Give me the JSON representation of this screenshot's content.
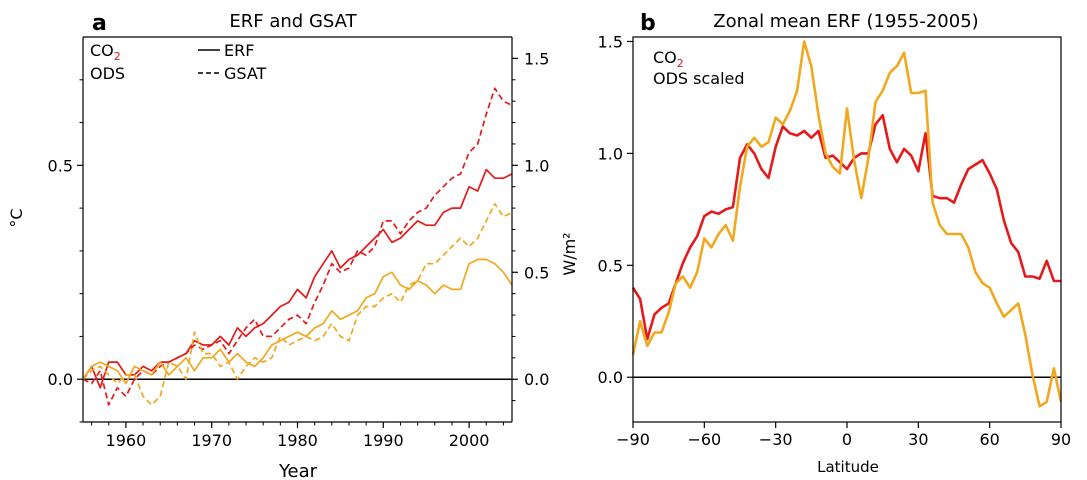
{
  "colors": {
    "co2": "#e41a1c",
    "ods": "#f0a81e",
    "axis": "#000000"
  },
  "chart_data": [
    {
      "panel_letter": "a",
      "type": "line",
      "title": "ERF and GSAT",
      "xlabel": "Year",
      "ylabel_left": "°C",
      "ylabel_right": "W/m²",
      "xlim": [
        1955,
        2005
      ],
      "ylim_left": [
        -0.1,
        0.8
      ],
      "ylim_right": [
        -0.2,
        1.6
      ],
      "xticks": [
        1960,
        1970,
        1980,
        1990,
        2000
      ],
      "xtick_labels": [
        "1960",
        "1970",
        "1980",
        "1990",
        "2000"
      ],
      "yticks_left": [
        0.0,
        0.5
      ],
      "ytick_labels_left": [
        "0.0",
        "0.5"
      ],
      "yticks_right": [
        0.0,
        0.5,
        1.0,
        1.5
      ],
      "ytick_labels_right": [
        "0.0",
        "0.5",
        "1.0",
        "1.5"
      ],
      "zero_line": true,
      "grid": false,
      "legend_species": [
        "CO",
        "ODS"
      ],
      "legend_species_subscript": [
        "2",
        ""
      ],
      "legend_styles": [
        "ERF",
        "GSAT"
      ],
      "x": [
        1955,
        1956,
        1957,
        1958,
        1959,
        1960,
        1961,
        1962,
        1963,
        1964,
        1965,
        1966,
        1967,
        1968,
        1969,
        1970,
        1971,
        1972,
        1973,
        1974,
        1975,
        1976,
        1977,
        1978,
        1979,
        1980,
        1981,
        1982,
        1983,
        1984,
        1985,
        1986,
        1987,
        1988,
        1989,
        1990,
        1991,
        1992,
        1993,
        1994,
        1995,
        1996,
        1997,
        1998,
        1999,
        2000,
        2001,
        2002,
        2003,
        2004,
        2005
      ],
      "series": [
        {
          "species": "CO2",
          "style": "solid",
          "axis": "left",
          "values": [
            0.0,
            0.03,
            -0.02,
            0.04,
            0.04,
            0.01,
            0.01,
            0.03,
            0.02,
            0.04,
            0.04,
            0.05,
            0.06,
            0.09,
            0.08,
            0.08,
            0.1,
            0.08,
            0.12,
            0.1,
            0.12,
            0.13,
            0.15,
            0.17,
            0.18,
            0.21,
            0.19,
            0.24,
            0.27,
            0.3,
            0.26,
            0.28,
            0.29,
            0.31,
            0.33,
            0.35,
            0.32,
            0.33,
            0.35,
            0.37,
            0.36,
            0.36,
            0.39,
            0.4,
            0.4,
            0.45,
            0.44,
            0.49,
            0.47,
            0.47,
            0.48
          ]
        },
        {
          "species": "CO2",
          "style": "dashed",
          "axis": "left",
          "values": [
            0.0,
            -0.01,
            0.02,
            -0.06,
            -0.02,
            -0.04,
            0.0,
            0.02,
            0.01,
            0.03,
            0.04,
            0.05,
            0.06,
            0.08,
            0.07,
            0.08,
            0.09,
            0.06,
            0.09,
            0.12,
            0.14,
            0.1,
            0.1,
            0.12,
            0.14,
            0.15,
            0.13,
            0.18,
            0.22,
            0.27,
            0.25,
            0.26,
            0.3,
            0.29,
            0.31,
            0.37,
            0.37,
            0.34,
            0.37,
            0.39,
            0.4,
            0.43,
            0.45,
            0.47,
            0.48,
            0.53,
            0.55,
            0.62,
            0.68,
            0.65,
            0.64
          ]
        },
        {
          "species": "ODS",
          "style": "solid",
          "axis": "left",
          "values": [
            0.0,
            0.03,
            0.04,
            0.03,
            0.02,
            -0.01,
            0.03,
            0.02,
            0.01,
            0.04,
            0.01,
            0.03,
            0.05,
            0.02,
            0.05,
            0.05,
            0.07,
            0.04,
            0.06,
            0.04,
            0.03,
            0.05,
            0.08,
            0.09,
            0.1,
            0.11,
            0.1,
            0.12,
            0.13,
            0.16,
            0.14,
            0.15,
            0.16,
            0.19,
            0.2,
            0.24,
            0.25,
            0.22,
            0.21,
            0.23,
            0.22,
            0.2,
            0.22,
            0.21,
            0.21,
            0.27,
            0.28,
            0.28,
            0.27,
            0.25,
            0.22
          ]
        },
        {
          "species": "ODS",
          "style": "dashed",
          "axis": "left",
          "values": [
            0.0,
            0.02,
            0.03,
            0.01,
            -0.01,
            0.01,
            0.01,
            -0.04,
            -0.06,
            -0.04,
            0.04,
            0.03,
            0.0,
            0.11,
            0.06,
            0.06,
            0.03,
            0.04,
            0.0,
            0.03,
            0.05,
            0.04,
            0.05,
            0.1,
            0.08,
            0.09,
            0.1,
            0.09,
            0.1,
            0.13,
            0.1,
            0.09,
            0.15,
            0.17,
            0.17,
            0.19,
            0.2,
            0.18,
            0.22,
            0.23,
            0.27,
            0.27,
            0.29,
            0.31,
            0.33,
            0.31,
            0.33,
            0.37,
            0.41,
            0.38,
            0.39
          ]
        }
      ]
    },
    {
      "panel_letter": "b",
      "type": "line",
      "title": "Zonal mean ERF (1955-2005)",
      "xlabel": "Latitude",
      "xlim": [
        -90,
        90
      ],
      "ylim": [
        -0.2,
        1.52
      ],
      "xticks": [
        -90,
        -60,
        -30,
        0,
        30,
        60,
        90
      ],
      "xtick_labels": [
        "−90",
        "−60",
        "−30",
        "0",
        "30",
        "60",
        "90"
      ],
      "yticks": [
        0.0,
        0.5,
        1.0,
        1.5
      ],
      "ytick_labels": [
        "0.0",
        "0.5",
        "1.0",
        "1.5"
      ],
      "zero_line": true,
      "grid": false,
      "legend": [
        "CO2",
        "ODS scaled"
      ],
      "legend_labels": [
        "CO",
        "ODS scaled"
      ],
      "legend_subscripts": [
        "2",
        ""
      ],
      "x": [
        -90,
        -87,
        -84,
        -81,
        -78,
        -75,
        -72,
        -69,
        -66,
        -63,
        -60,
        -57,
        -54,
        -51,
        -48,
        -45,
        -42,
        -39,
        -36,
        -33,
        -30,
        -27,
        -24,
        -21,
        -18,
        -15,
        -12,
        -9,
        -6,
        -3,
        0,
        3,
        6,
        9,
        12,
        15,
        18,
        21,
        24,
        27,
        30,
        33,
        36,
        39,
        42,
        45,
        48,
        51,
        54,
        57,
        60,
        63,
        66,
        69,
        72,
        75,
        78,
        81,
        84,
        87,
        90
      ],
      "series": [
        {
          "name": "CO2",
          "values": [
            0.4,
            0.35,
            0.17,
            0.28,
            0.31,
            0.33,
            0.42,
            0.51,
            0.58,
            0.63,
            0.72,
            0.74,
            0.73,
            0.75,
            0.76,
            0.98,
            1.04,
            1.0,
            0.93,
            0.89,
            1.03,
            1.12,
            1.09,
            1.08,
            1.1,
            1.07,
            1.1,
            0.98,
            0.99,
            0.96,
            0.93,
            0.98,
            1.0,
            1.0,
            1.13,
            1.17,
            1.02,
            0.96,
            1.02,
            0.99,
            0.92,
            1.09,
            0.81,
            0.8,
            0.8,
            0.78,
            0.86,
            0.93,
            0.95,
            0.97,
            0.91,
            0.84,
            0.7,
            0.6,
            0.56,
            0.45,
            0.45,
            0.44,
            0.52,
            0.43,
            0.43
          ]
        },
        {
          "name": "ODS scaled",
          "values": [
            0.1,
            0.25,
            0.14,
            0.2,
            0.2,
            0.29,
            0.42,
            0.45,
            0.4,
            0.47,
            0.62,
            0.58,
            0.64,
            0.68,
            0.61,
            0.85,
            1.03,
            1.07,
            1.03,
            1.05,
            1.16,
            1.13,
            1.19,
            1.28,
            1.5,
            1.39,
            1.17,
            1.0,
            0.94,
            0.91,
            1.2,
            0.97,
            0.8,
            0.98,
            1.23,
            1.28,
            1.36,
            1.39,
            1.45,
            1.27,
            1.27,
            1.28,
            0.78,
            0.68,
            0.64,
            0.64,
            0.64,
            0.58,
            0.47,
            0.42,
            0.4,
            0.33,
            0.27,
            0.3,
            0.33,
            0.19,
            0.01,
            -0.13,
            -0.11,
            0.04,
            -0.11
          ]
        }
      ]
    }
  ]
}
